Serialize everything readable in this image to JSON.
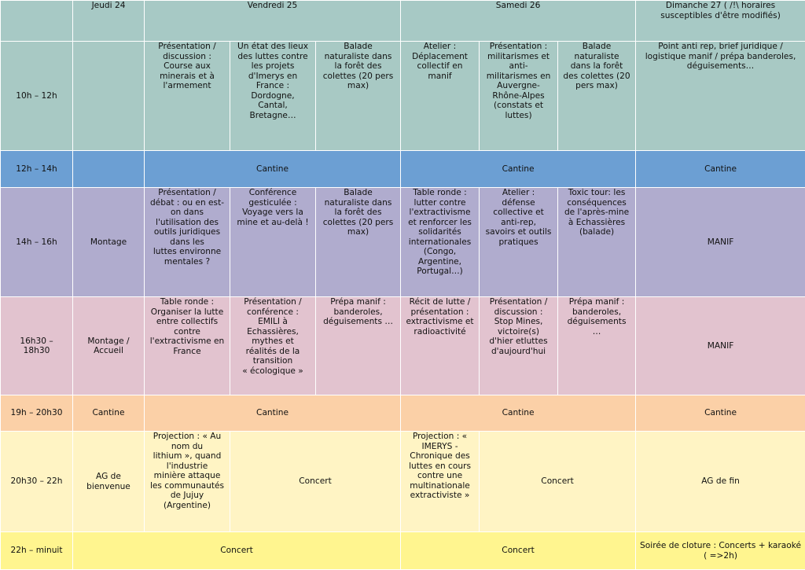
{
  "header": {
    "jeudi": "Jeudi 24",
    "vendredi": "Vendredi 25",
    "samedi": "Samedi 26",
    "dimanche": "Dimanche 27 ( /!\\ horaires\nsusceptibles d'être modifiés)"
  },
  "rows": {
    "r1012": {
      "time": "10h – 12h",
      "jeudi": "",
      "vendredi_a": "Présentation /\ndiscussion :\nCourse aux\nminerais et à\nl'armement",
      "vendredi_b": "Un état des lieux\ndes luttes contre\nles projets\nd'Imerys en\nFrance :\nDordogne,\nCantal,\nBretagne…",
      "vendredi_c": "Balade\nnaturaliste dans\nla forêt des\ncolettes (20 pers\nmax)",
      "samedi_a": "Atelier :\nDéplacement\ncollectif en\nmanif",
      "samedi_b": "Présentation :\nmilitarismes et\nanti-\nmilitarismes en\nAuvergne-\nRhône-Alpes\n(constats et\nluttes)",
      "samedi_c": "Balade\nnaturaliste\ndans la forêt\ndes colettes (20\npers max)",
      "dimanche": "Point anti rep, brief juridique /\nlogistique manif / prépa banderoles,\ndéguisements…"
    },
    "r1214": {
      "time": "12h – 14h",
      "jeudi": "",
      "vendredi": "Cantine",
      "samedi": "Cantine",
      "dimanche": "Cantine"
    },
    "r1416": {
      "time": "14h – 16h",
      "jeudi": "Montage",
      "vendredi_a": "Présentation /\ndébat : ou en est-\non dans\nl'utilisation des\noutils juridiques\ndans les\nluttes environne\nmentales ?",
      "vendredi_b": "Conférence\ngesticulée :\nVoyage vers la\nmine et au-delà !",
      "vendredi_c": "Balade\nnaturaliste dans\nla forêt des\ncolettes (20 pers\nmax)",
      "samedi_a": "Table ronde :\nlutter contre\nl'extractivisme\net renforcer les\nsolidarités\ninternationales\n(Congo,\nArgentine,\nPortugal…)",
      "samedi_b": "Atelier :\ndéfense\ncollective et\nanti-rep,\nsavoirs et outils\npratiques",
      "samedi_c": "Toxic tour: les\nconséquences\nde l'après-mine\nà Echassières\n(balade)",
      "dimanche": "MANIF"
    },
    "r1618": {
      "time": "16h30 –\n18h30",
      "jeudi": "Montage /\nAccueil",
      "vendredi_a": "Table ronde :\nOrganiser la lutte\nentre collectifs\ncontre\nl'extractivisme en\nFrance",
      "vendredi_b": "Présentation /\nconférence :\nEMILI à\nEchassières,\nmythes et\nréalités de la\ntransition\n« écologique »",
      "vendredi_c": "Prépa manif :\nbanderoles,\ndéguisements …",
      "samedi_a": "Récit de lutte /\nprésentation :\nextractivisme et\nradioactivité",
      "samedi_b": "Présentation /\ndiscussion :\nStop Mines,\nvictoire(s)\nd'hier etluttes\nd'aujourd'hui",
      "samedi_c": "Prépa manif :\nbanderoles,\ndéguisements\n…",
      "dimanche": "MANIF"
    },
    "r1920": {
      "time": "19h – 20h30",
      "jeudi": "Cantine",
      "vendredi": "Cantine",
      "samedi": "Cantine",
      "dimanche": "Cantine"
    },
    "r2022": {
      "time": "20h30 – 22h",
      "jeudi": "AG de\nbienvenue",
      "vendredi_a": "Projection : « Au\nnom du\nlithium », quand\nl'industrie\nminière attaque\nles communautés\nde Jujuy\n(Argentine)",
      "vendredi_concert": "Concert",
      "samedi_a": "Projection : «\nIMERYS -\nChronique des\nluttes en cours\ncontre une\nmultinationale\nextractiviste »",
      "samedi_concert": "Concert",
      "dimanche": "AG de fin"
    },
    "r2224": {
      "time": "22h – minuit",
      "vendredi": "Concert",
      "samedi": "Concert",
      "dimanche": "Soirée de cloture : Concerts + karaoké\n( =>2h)"
    }
  }
}
